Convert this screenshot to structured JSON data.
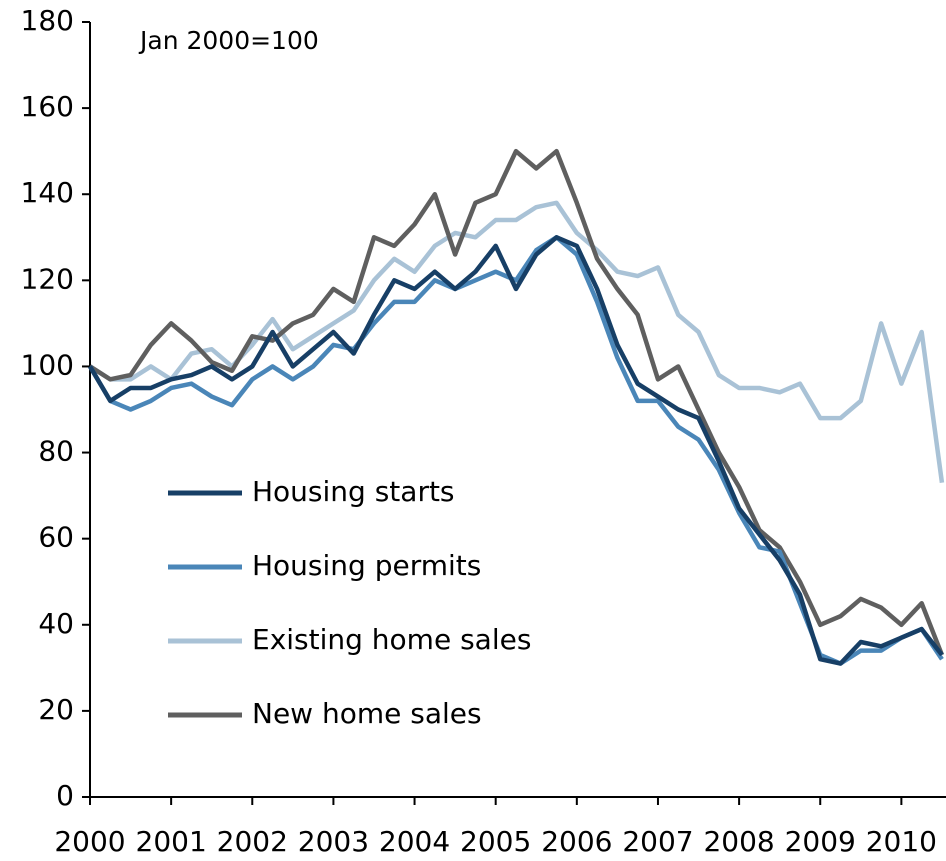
{
  "chart_data": {
    "type": "line",
    "annotation": "Jan 2000=100",
    "x": [
      2000,
      2000.25,
      2000.5,
      2000.75,
      2001,
      2001.25,
      2001.5,
      2001.75,
      2002,
      2002.25,
      2002.5,
      2002.75,
      2003,
      2003.25,
      2003.5,
      2003.75,
      2004,
      2004.25,
      2004.5,
      2004.75,
      2005,
      2005.25,
      2005.5,
      2005.75,
      2006,
      2006.25,
      2006.5,
      2006.75,
      2007,
      2007.25,
      2007.5,
      2007.75,
      2008,
      2008.25,
      2008.5,
      2008.75,
      2009,
      2009.25,
      2009.5,
      2009.75,
      2010,
      2010.25,
      2010.5
    ],
    "series": [
      {
        "name": "Housing starts",
        "color": "#173f66",
        "values": [
          100,
          92,
          95,
          95,
          97,
          98,
          100,
          97,
          100,
          108,
          100,
          104,
          108,
          103,
          112,
          120,
          118,
          122,
          118,
          122,
          128,
          118,
          126,
          130,
          128,
          118,
          105,
          96,
          93,
          90,
          88,
          78,
          67,
          61,
          55,
          47,
          32,
          31,
          36,
          35,
          37,
          39,
          33
        ]
      },
      {
        "name": "Housing permits",
        "color": "#4a86b8",
        "values": [
          100,
          92,
          90,
          92,
          95,
          96,
          93,
          91,
          97,
          100,
          97,
          100,
          105,
          104,
          110,
          115,
          115,
          120,
          118,
          120,
          122,
          120,
          127,
          130,
          126,
          115,
          102,
          92,
          92,
          86,
          83,
          76,
          66,
          58,
          57,
          45,
          33,
          31,
          34,
          34,
          37,
          39,
          32
        ]
      },
      {
        "name": "Existing home sales",
        "color": "#a9c2d6",
        "values": [
          100,
          97,
          97,
          100,
          97,
          103,
          104,
          100,
          105,
          111,
          104,
          107,
          110,
          113,
          120,
          125,
          122,
          128,
          131,
          130,
          134,
          134,
          137,
          138,
          131,
          127,
          122,
          121,
          123,
          112,
          108,
          98,
          95,
          95,
          94,
          96,
          88,
          88,
          92,
          110,
          96,
          108,
          73
        ]
      },
      {
        "name": "New home sales",
        "color": "#5f5f5f",
        "values": [
          100,
          97,
          98,
          105,
          110,
          106,
          101,
          99,
          107,
          106,
          110,
          112,
          118,
          115,
          130,
          128,
          133,
          140,
          126,
          138,
          140,
          150,
          146,
          150,
          138,
          125,
          118,
          112,
          97,
          100,
          90,
          80,
          72,
          62,
          58,
          50,
          40,
          42,
          46,
          44,
          40,
          45,
          33
        ]
      }
    ],
    "xlim": [
      2000,
      2010.55
    ],
    "xticks": [
      2000,
      2001,
      2002,
      2003,
      2004,
      2005,
      2006,
      2007,
      2008,
      2009,
      2010
    ],
    "ylim": [
      0,
      180
    ],
    "yticks": [
      0,
      20,
      40,
      60,
      80,
      100,
      120,
      140,
      160,
      180
    ]
  }
}
